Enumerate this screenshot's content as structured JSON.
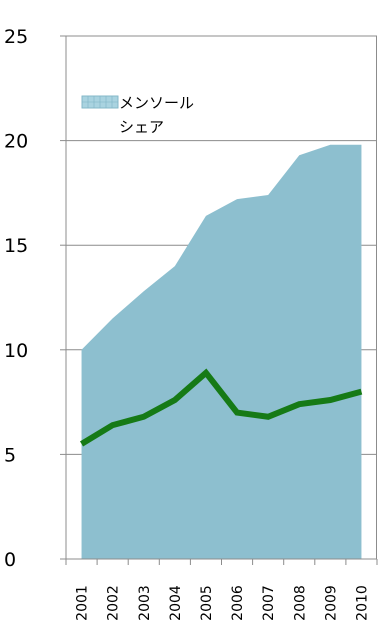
{
  "chart_data": {
    "type": "area",
    "title": "",
    "xlabel": "",
    "ylabel": "",
    "categories": [
      "2001",
      "2002",
      "2003",
      "2004",
      "2005",
      "2006",
      "2007",
      "2008",
      "2009",
      "2010"
    ],
    "ylim": [
      0,
      25
    ],
    "yticks": [
      "0",
      "5",
      "10",
      "15",
      "20",
      "25"
    ],
    "grid": true,
    "legend": {
      "position": "top-left",
      "label_line1": "メンソール",
      "label_line2": "シェア"
    },
    "series": [
      {
        "name": "メンソール シェア",
        "kind": "area",
        "color": "#8dbfcf",
        "values": [
          10.0,
          11.5,
          12.8,
          14.0,
          16.4,
          17.2,
          17.4,
          19.3,
          19.8,
          19.8
        ]
      },
      {
        "kind": "line",
        "color": "#167a16",
        "values": [
          5.5,
          6.4,
          6.8,
          7.6,
          8.9,
          7.0,
          6.8,
          7.4,
          7.6,
          8.0
        ]
      }
    ]
  }
}
